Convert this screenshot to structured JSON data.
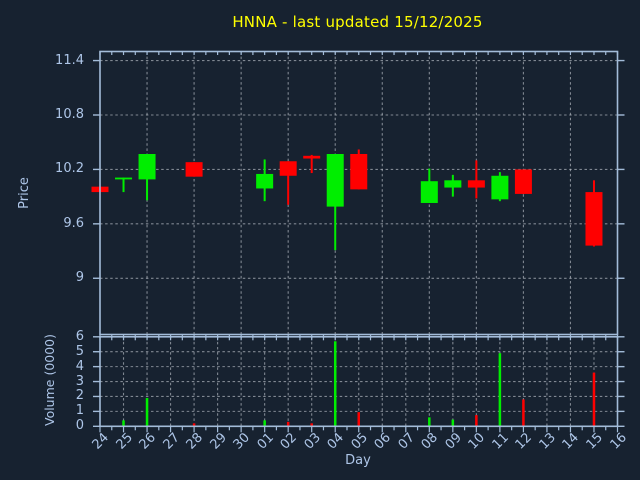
{
  "title": "HNNA - last updated 15/12/2025",
  "colors": {
    "background": "#172230",
    "title": "#ffff00",
    "spine": "#a3bcd9",
    "grid": "#b9bfc7",
    "tick_label": "#aec6e8",
    "up": "#00ee00",
    "down": "#ff0000"
  },
  "chart_data": [
    {
      "type": "candlestick",
      "title": "HNNA - last updated 15/12/2025",
      "xlabel": "Day",
      "ylabel": "Price",
      "ylim": [
        8.38,
        11.5
      ],
      "yticks": [
        9,
        9.6,
        10.2,
        10.8,
        11.4
      ],
      "ytick_labels": [
        "9",
        "9.6",
        "10.2",
        "10.8",
        "11.4"
      ],
      "grid": true,
      "categories": [
        "24",
        "25",
        "26",
        "27",
        "28",
        "29",
        "30",
        "01",
        "02",
        "03",
        "04",
        "05",
        "06",
        "07",
        "08",
        "09",
        "10",
        "11",
        "12",
        "13",
        "14",
        "15",
        "16"
      ],
      "candles": [
        {
          "day": "24",
          "open": 10.01,
          "high": 10.01,
          "low": 9.95,
          "close": 9.95
        },
        {
          "day": "25",
          "open": 10.09,
          "high": 10.11,
          "low": 9.95,
          "close": 10.11
        },
        {
          "day": "26",
          "open": 10.09,
          "high": 10.37,
          "low": 9.86,
          "close": 10.37
        },
        {
          "day": "28",
          "open": 10.28,
          "high": 10.28,
          "low": 10.12,
          "close": 10.12
        },
        {
          "day": "01",
          "open": 9.99,
          "high": 10.31,
          "low": 9.85,
          "close": 10.15
        },
        {
          "day": "02",
          "open": 10.29,
          "high": 10.29,
          "low": 9.81,
          "close": 10.13
        },
        {
          "day": "03",
          "open": 10.35,
          "high": 10.36,
          "low": 10.16,
          "close": 10.32
        },
        {
          "day": "04",
          "open": 9.79,
          "high": 10.37,
          "low": 9.31,
          "close": 10.37
        },
        {
          "day": "05",
          "open": 10.37,
          "high": 10.42,
          "low": 9.98,
          "close": 9.98
        },
        {
          "day": "08",
          "open": 9.83,
          "high": 10.21,
          "low": 9.83,
          "close": 10.07
        },
        {
          "day": "09",
          "open": 10.0,
          "high": 10.14,
          "low": 9.9,
          "close": 10.08
        },
        {
          "day": "10",
          "open": 10.08,
          "high": 10.3,
          "low": 9.88,
          "close": 10.0
        },
        {
          "day": "11",
          "open": 9.87,
          "high": 10.17,
          "low": 9.85,
          "close": 10.13
        },
        {
          "day": "12",
          "open": 10.2,
          "high": 10.2,
          "low": 9.93,
          "close": 9.93
        },
        {
          "day": "15",
          "open": 9.95,
          "high": 10.08,
          "low": 9.35,
          "close": 9.36
        }
      ]
    },
    {
      "type": "bar",
      "ylabel": "Volume (0000)",
      "ylim": [
        0,
        6
      ],
      "yticks": [
        0,
        1,
        2,
        3,
        4,
        5,
        6
      ],
      "ytick_labels": [
        "0",
        "1",
        "2",
        "3",
        "4",
        "5",
        "6"
      ],
      "grid": true,
      "values": [
        {
          "day": "24",
          "value": 0.05
        },
        {
          "day": "25",
          "value": 0.4
        },
        {
          "day": "26",
          "value": 1.9
        },
        {
          "day": "28",
          "value": 0.2
        },
        {
          "day": "01",
          "value": 0.4
        },
        {
          "day": "02",
          "value": 0.3
        },
        {
          "day": "03",
          "value": 0.2
        },
        {
          "day": "04",
          "value": 5.7
        },
        {
          "day": "05",
          "value": 0.95
        },
        {
          "day": "08",
          "value": 0.6
        },
        {
          "day": "09",
          "value": 0.45
        },
        {
          "day": "10",
          "value": 0.75
        },
        {
          "day": "11",
          "value": 4.9
        },
        {
          "day": "12",
          "value": 1.8
        },
        {
          "day": "15",
          "value": 3.6
        }
      ]
    }
  ],
  "labels": {
    "price_axis": "Price",
    "volume_axis": "Volume (0000)",
    "day_axis": "Day"
  }
}
